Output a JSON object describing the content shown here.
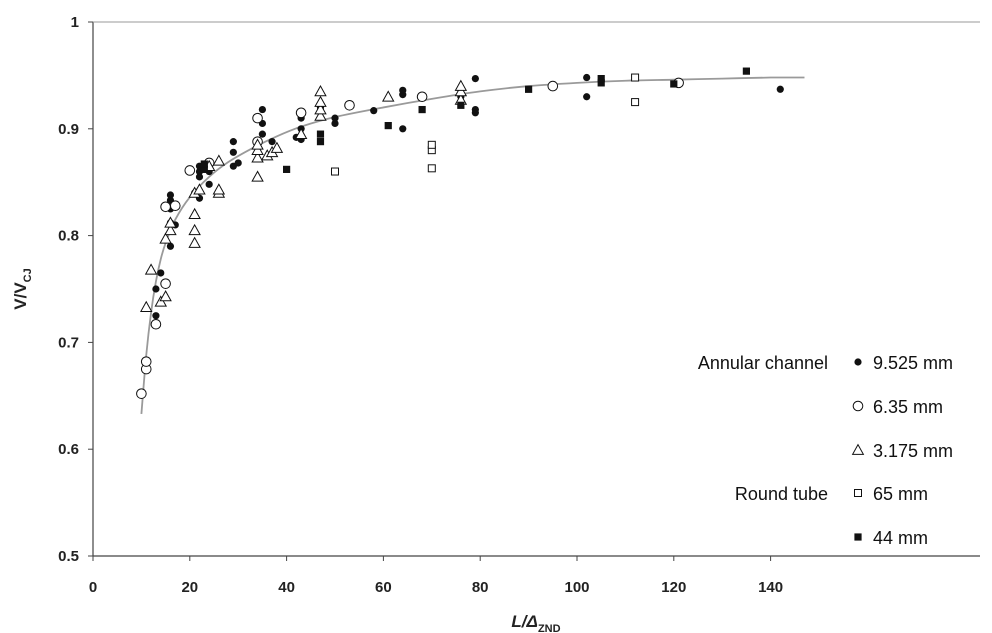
{
  "chart_data": {
    "type": "scatter",
    "title": "",
    "xlabel": "L/ΔZND",
    "xlabel_main": "L/Δ",
    "xlabel_sub": "ZND",
    "ylabel": "V/VCJ",
    "ylabel_main": "V/V",
    "ylabel_sub": "CJ",
    "xlim": [
      0,
      148
    ],
    "ylim": [
      0.5,
      1.0
    ],
    "xticks": [
      0,
      20,
      40,
      60,
      80,
      100,
      120,
      140
    ],
    "yticks": [
      0.5,
      0.6,
      0.7,
      0.8,
      0.9,
      1.0
    ],
    "xtick_labels": [
      "0",
      "20",
      "40",
      "60",
      "80",
      "100",
      "120",
      "140"
    ],
    "ytick_labels": [
      "0.5",
      "0.6",
      "0.7",
      "0.8",
      "0.9",
      "1"
    ],
    "grid": false,
    "legend_position": "right",
    "legend_groups": [
      {
        "label": "Annular channel",
        "series_index": 0
      },
      {
        "label": "Round tube",
        "series_index": 3
      }
    ],
    "fit_curve": [
      [
        10,
        0.633
      ],
      [
        11,
        0.688
      ],
      [
        12,
        0.728
      ],
      [
        13,
        0.757
      ],
      [
        14,
        0.778
      ],
      [
        15,
        0.793
      ],
      [
        17,
        0.815
      ],
      [
        20,
        0.836
      ],
      [
        24,
        0.855
      ],
      [
        28,
        0.869
      ],
      [
        33,
        0.882
      ],
      [
        38,
        0.893
      ],
      [
        43,
        0.902
      ],
      [
        50,
        0.911
      ],
      [
        60,
        0.92
      ],
      [
        70,
        0.928
      ],
      [
        80,
        0.935
      ],
      [
        90,
        0.94
      ],
      [
        100,
        0.943
      ],
      [
        110,
        0.945
      ],
      [
        120,
        0.946
      ],
      [
        130,
        0.947
      ],
      [
        140,
        0.948
      ],
      [
        147,
        0.948
      ]
    ],
    "colors": {
      "marker": "#111111",
      "curve": "#9a9a9a",
      "axis": "#444444"
    },
    "series": [
      {
        "name": "9.525 mm",
        "marker": "filled-circle",
        "points": [
          [
            13,
            0.725
          ],
          [
            13,
            0.75
          ],
          [
            14,
            0.765
          ],
          [
            16,
            0.79
          ],
          [
            16,
            0.812
          ],
          [
            16,
            0.825
          ],
          [
            16,
            0.833
          ],
          [
            16,
            0.838
          ],
          [
            17,
            0.81
          ],
          [
            21,
            0.84
          ],
          [
            22,
            0.835
          ],
          [
            22,
            0.855
          ],
          [
            22,
            0.86
          ],
          [
            22,
            0.865
          ],
          [
            23,
            0.865
          ],
          [
            24,
            0.848
          ],
          [
            24,
            0.86
          ],
          [
            29,
            0.865
          ],
          [
            29,
            0.878
          ],
          [
            29,
            0.888
          ],
          [
            30,
            0.868
          ],
          [
            35,
            0.895
          ],
          [
            35,
            0.905
          ],
          [
            35,
            0.918
          ],
          [
            37,
            0.888
          ],
          [
            42,
            0.892
          ],
          [
            43,
            0.89
          ],
          [
            43,
            0.9
          ],
          [
            43,
            0.91
          ],
          [
            47,
            0.917
          ],
          [
            47,
            0.92
          ],
          [
            50,
            0.905
          ],
          [
            50,
            0.91
          ],
          [
            58,
            0.917
          ],
          [
            64,
            0.9
          ],
          [
            64,
            0.932
          ],
          [
            64,
            0.936
          ],
          [
            76,
            0.925
          ],
          [
            76,
            0.93
          ],
          [
            79,
            0.915
          ],
          [
            79,
            0.918
          ],
          [
            79,
            0.947
          ],
          [
            102,
            0.93
          ],
          [
            102,
            0.948
          ],
          [
            142,
            0.937
          ]
        ]
      },
      {
        "name": "6.35 mm",
        "marker": "open-circle",
        "points": [
          [
            10,
            0.652
          ],
          [
            11,
            0.675
          ],
          [
            11,
            0.682
          ],
          [
            13,
            0.717
          ],
          [
            15,
            0.755
          ],
          [
            15,
            0.827
          ],
          [
            17,
            0.828
          ],
          [
            20,
            0.861
          ],
          [
            24,
            0.868
          ],
          [
            34,
            0.91
          ],
          [
            34,
            0.888
          ],
          [
            43,
            0.915
          ],
          [
            53,
            0.922
          ],
          [
            68,
            0.93
          ],
          [
            95,
            0.94
          ],
          [
            121,
            0.943
          ]
        ]
      },
      {
        "name": "3.175 mm",
        "marker": "open-triangle",
        "points": [
          [
            11,
            0.733
          ],
          [
            12,
            0.768
          ],
          [
            14,
            0.738
          ],
          [
            15,
            0.743
          ],
          [
            15,
            0.797
          ],
          [
            16,
            0.805
          ],
          [
            16,
            0.812
          ],
          [
            21,
            0.793
          ],
          [
            21,
            0.805
          ],
          [
            21,
            0.82
          ],
          [
            21,
            0.84
          ],
          [
            22,
            0.843
          ],
          [
            24,
            0.865
          ],
          [
            26,
            0.84
          ],
          [
            26,
            0.843
          ],
          [
            26,
            0.87
          ],
          [
            34,
            0.855
          ],
          [
            34,
            0.873
          ],
          [
            34,
            0.88
          ],
          [
            34,
            0.885
          ],
          [
            36,
            0.875
          ],
          [
            37,
            0.878
          ],
          [
            38,
            0.882
          ],
          [
            43,
            0.895
          ],
          [
            47,
            0.912
          ],
          [
            47,
            0.918
          ],
          [
            47,
            0.925
          ],
          [
            47,
            0.935
          ],
          [
            61,
            0.93
          ],
          [
            76,
            0.927
          ],
          [
            76,
            0.935
          ],
          [
            76,
            0.94
          ]
        ]
      },
      {
        "name": "65 mm",
        "marker": "open-square",
        "points": [
          [
            50,
            0.86
          ],
          [
            70,
            0.863
          ],
          [
            70,
            0.88
          ],
          [
            70,
            0.885
          ],
          [
            112,
            0.925
          ],
          [
            112,
            0.948
          ]
        ]
      },
      {
        "name": "44 mm",
        "marker": "filled-square",
        "points": [
          [
            23,
            0.862
          ],
          [
            23,
            0.867
          ],
          [
            40,
            0.862
          ],
          [
            47,
            0.888
          ],
          [
            47,
            0.895
          ],
          [
            61,
            0.903
          ],
          [
            68,
            0.918
          ],
          [
            76,
            0.922
          ],
          [
            90,
            0.937
          ],
          [
            105,
            0.943
          ],
          [
            105,
            0.947
          ],
          [
            120,
            0.942
          ],
          [
            135,
            0.954
          ]
        ]
      }
    ]
  }
}
